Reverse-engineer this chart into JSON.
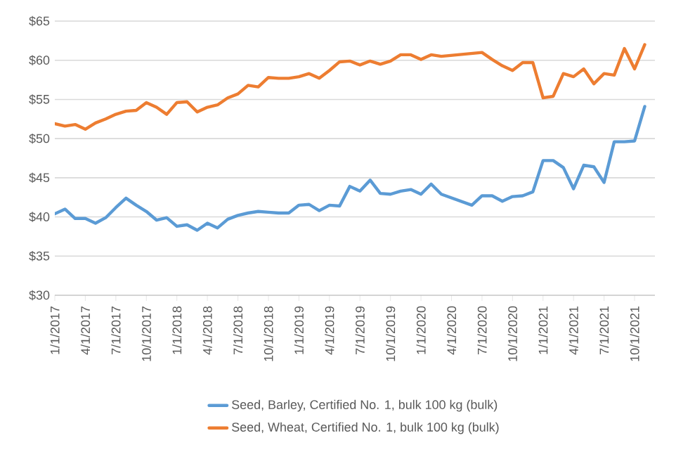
{
  "chart_data": {
    "type": "line",
    "x": [
      "2017-01",
      "2017-02",
      "2017-03",
      "2017-04",
      "2017-05",
      "2017-06",
      "2017-07",
      "2017-08",
      "2017-09",
      "2017-10",
      "2017-11",
      "2017-12",
      "2018-01",
      "2018-02",
      "2018-03",
      "2018-04",
      "2018-05",
      "2018-06",
      "2018-07",
      "2018-08",
      "2018-09",
      "2018-10",
      "2018-11",
      "2018-12",
      "2019-01",
      "2019-02",
      "2019-03",
      "2019-04",
      "2019-05",
      "2019-06",
      "2019-07",
      "2019-08",
      "2019-09",
      "2019-10",
      "2019-11",
      "2019-12",
      "2020-01",
      "2020-02",
      "2020-03",
      "2020-07",
      "2020-08",
      "2020-09",
      "2020-10",
      "2020-11",
      "2020-12",
      "2021-01",
      "2021-02",
      "2021-03",
      "2021-04",
      "2021-05",
      "2021-06",
      "2021-07",
      "2021-08",
      "2021-09",
      "2021-10",
      "2021-11"
    ],
    "series": [
      {
        "name": "Seed, Barley, Certified No. 1, bulk 100 kg (bulk)",
        "color": "#5b9bd5",
        "x": [
          "2017-01",
          "2017-02",
          "2017-03",
          "2017-04",
          "2017-05",
          "2017-06",
          "2017-07",
          "2017-08",
          "2017-09",
          "2017-10",
          "2017-11",
          "2017-12",
          "2018-01",
          "2018-02",
          "2018-03",
          "2018-04",
          "2018-05",
          "2018-06",
          "2018-07",
          "2018-08",
          "2018-09",
          "2018-10",
          "2018-11",
          "2018-12",
          "2019-01",
          "2019-02",
          "2019-03",
          "2019-04",
          "2019-05",
          "2019-06",
          "2019-07",
          "2019-08",
          "2019-09",
          "2019-10",
          "2019-11",
          "2019-12",
          "2020-01",
          "2020-02",
          "2020-03",
          "2020-06",
          "2020-07",
          "2020-08",
          "2020-09",
          "2020-10",
          "2020-11",
          "2020-12",
          "2021-01",
          "2021-02",
          "2021-03",
          "2021-04",
          "2021-05",
          "2021-06",
          "2021-07",
          "2021-08",
          "2021-09",
          "2021-10",
          "2021-11"
        ],
        "values": [
          40.4,
          41.0,
          39.8,
          39.8,
          39.2,
          39.9,
          41.2,
          42.4,
          41.5,
          40.7,
          39.6,
          39.9,
          38.8,
          39.0,
          38.3,
          39.2,
          38.6,
          39.7,
          40.2,
          40.5,
          40.7,
          40.6,
          40.5,
          40.5,
          41.5,
          41.6,
          40.8,
          41.5,
          41.4,
          43.9,
          43.3,
          44.7,
          43.0,
          42.9,
          43.3,
          43.5,
          42.9,
          44.2,
          42.9,
          41.5,
          42.7,
          42.7,
          42.0,
          42.6,
          42.7,
          43.2,
          47.2,
          47.2,
          46.3,
          43.6,
          46.6,
          46.4,
          44.4,
          49.6,
          49.6,
          49.7,
          54.1
        ]
      },
      {
        "name": "Seed, Wheat, Certified No. 1, bulk 100 kg (bulk)",
        "color": "#ed7d31",
        "values": [
          51.9,
          51.6,
          51.8,
          51.2,
          52.0,
          52.5,
          53.1,
          53.5,
          53.6,
          54.6,
          54.0,
          53.1,
          54.6,
          54.7,
          53.4,
          54.0,
          54.3,
          55.2,
          55.7,
          56.8,
          56.6,
          57.8,
          57.7,
          57.7,
          57.9,
          58.3,
          57.7,
          58.7,
          59.8,
          59.9,
          59.4,
          59.9,
          59.5,
          59.9,
          60.7,
          60.7,
          60.1,
          60.7,
          60.5,
          61.0,
          60.1,
          59.3,
          58.7,
          59.7,
          59.7,
          55.2,
          55.4,
          58.3,
          57.9,
          58.9,
          57.0,
          58.3,
          58.1,
          61.5,
          58.9,
          62.0
        ]
      }
    ],
    "xlim": [
      "2017-01",
      "2021-12"
    ],
    "xticks": [
      {
        "value": "2017-01",
        "label": "1/1/2017"
      },
      {
        "value": "2017-04",
        "label": "4/1/2017"
      },
      {
        "value": "2017-07",
        "label": "7/1/2017"
      },
      {
        "value": "2017-10",
        "label": "10/1/2017"
      },
      {
        "value": "2018-01",
        "label": "1/1/2018"
      },
      {
        "value": "2018-04",
        "label": "4/1/2018"
      },
      {
        "value": "2018-07",
        "label": "7/1/2018"
      },
      {
        "value": "2018-10",
        "label": "10/1/2018"
      },
      {
        "value": "2019-01",
        "label": "1/1/2019"
      },
      {
        "value": "2019-04",
        "label": "4/1/2019"
      },
      {
        "value": "2019-07",
        "label": "7/1/2019"
      },
      {
        "value": "2019-10",
        "label": "10/1/2019"
      },
      {
        "value": "2020-01",
        "label": "1/1/2020"
      },
      {
        "value": "2020-04",
        "label": "4/1/2020"
      },
      {
        "value": "2020-07",
        "label": "7/1/2020"
      },
      {
        "value": "2020-10",
        "label": "10/1/2020"
      },
      {
        "value": "2021-01",
        "label": "1/1/2021"
      },
      {
        "value": "2021-04",
        "label": "4/1/2021"
      },
      {
        "value": "2021-07",
        "label": "7/1/2021"
      },
      {
        "value": "2021-10",
        "label": "10/1/2021"
      }
    ],
    "ylim": [
      30,
      65
    ],
    "yticks": [
      {
        "value": 30,
        "label": "$30"
      },
      {
        "value": 35,
        "label": "$35"
      },
      {
        "value": 40,
        "label": "$40"
      },
      {
        "value": 45,
        "label": "$45"
      },
      {
        "value": 50,
        "label": "$50"
      },
      {
        "value": 55,
        "label": "$55"
      },
      {
        "value": 60,
        "label": "$60"
      },
      {
        "value": 65,
        "label": "$65"
      }
    ],
    "grid": "y",
    "legend": "bottom",
    "marker": "none",
    "line_style": "solid"
  }
}
